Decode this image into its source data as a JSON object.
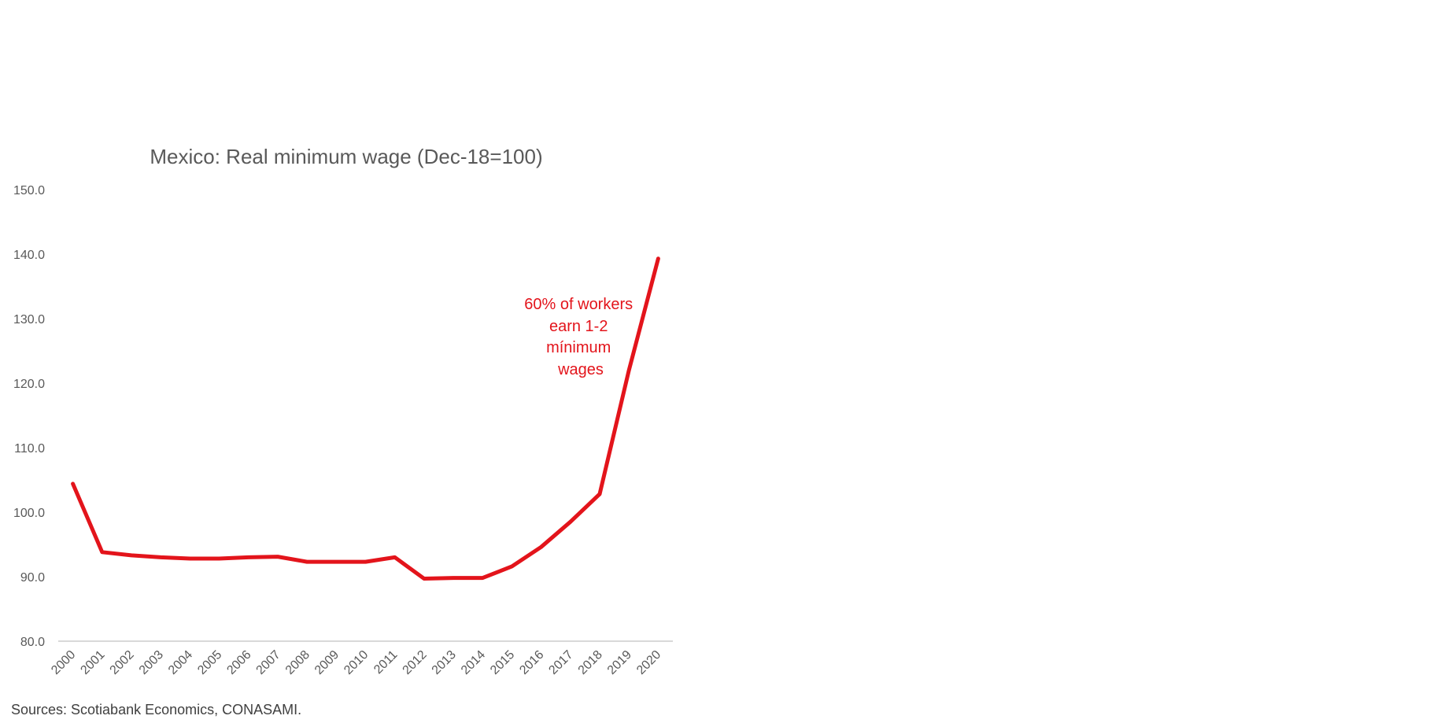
{
  "chart_data": {
    "type": "line",
    "title": "Mexico: Real minimum wage (Dec-18=100)",
    "xlabel": "",
    "ylabel": "",
    "x": [
      "2000",
      "2001",
      "2002",
      "2003",
      "2004",
      "2005",
      "2006",
      "2007",
      "2008",
      "2009",
      "2010",
      "2011",
      "2012",
      "2013",
      "2014",
      "2015",
      "2016",
      "2017",
      "2018",
      "2019",
      "2020"
    ],
    "series": [
      {
        "values": [
          104.4,
          93.8,
          93.3,
          93.0,
          92.8,
          92.8,
          93.0,
          93.1,
          92.3,
          92.3,
          92.3,
          93.0,
          89.7,
          89.8,
          89.8,
          91.6,
          94.6,
          98.5,
          102.8,
          122.0,
          139.3
        ]
      }
    ],
    "ylim": [
      80,
      150
    ],
    "yticks": [
      "80.0",
      "90.0",
      "100.0",
      "110.0",
      "120.0",
      "130.0",
      "140.0",
      "150.0"
    ],
    "grid": false,
    "line_color": "#e3141b",
    "annotation": {
      "lines": [
        "60% of workers",
        "earn 1-2",
        "mínimum",
        "wages"
      ],
      "color": "#e3141b"
    },
    "source": "Sources: Scotiabank Economics, CONASAMI."
  }
}
